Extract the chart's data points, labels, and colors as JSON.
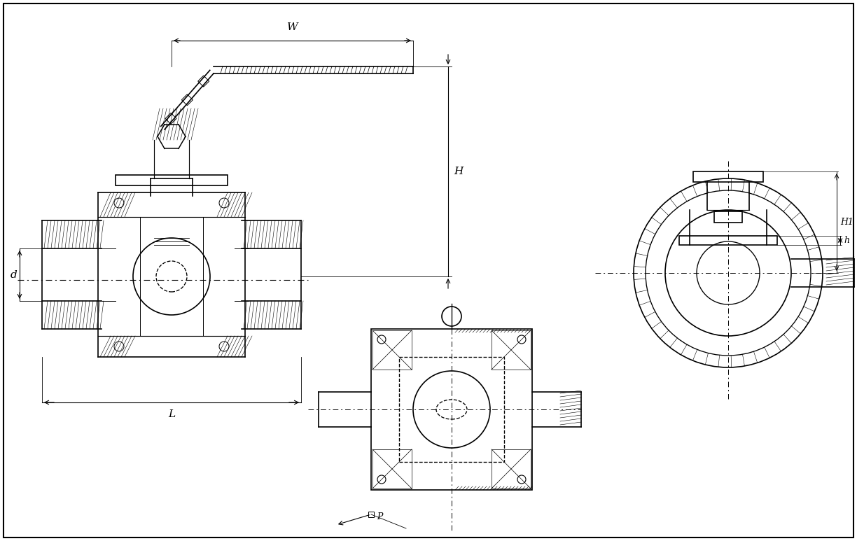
{
  "bg_color": "#ffffff",
  "line_color": "#000000",
  "hatch_color": "#000000",
  "dim_color": "#000000",
  "title": "",
  "figsize": [
    12.24,
    7.73
  ],
  "dpi": 100,
  "labels": {
    "W": "W",
    "H": "H",
    "h": "h",
    "H1": "H1",
    "L": "L",
    "d": "d",
    "P": "P"
  }
}
